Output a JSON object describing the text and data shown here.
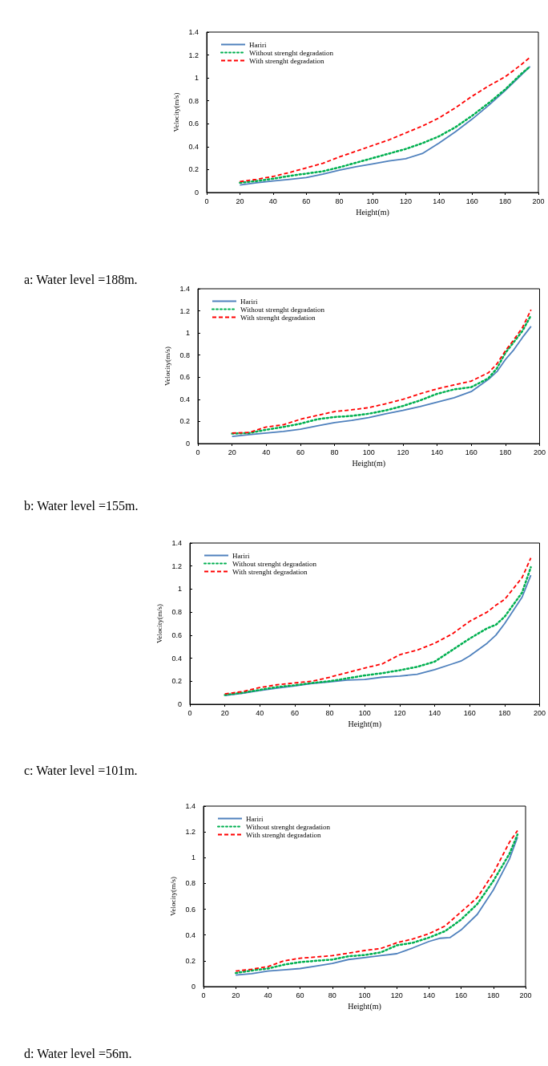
{
  "chart_data": [
    {
      "type": "line",
      "xlabel": "Height(m)",
      "ylabel": "Velocity(m/s)",
      "annotations": [
        "a: Water level =188m."
      ],
      "xlim": [
        0,
        200
      ],
      "xticks": [
        0,
        20,
        40,
        60,
        80,
        100,
        120,
        140,
        160,
        180,
        200
      ],
      "ylim": [
        0,
        1.4
      ],
      "yticks": [
        0,
        0.2,
        0.4,
        0.6,
        0.8,
        1,
        1.2,
        1.4
      ],
      "grid": false,
      "legend": "top left",
      "marker": "none",
      "series": [
        {
          "name": "Hariri",
          "color": "#4f81bd",
          "line_style": "solid",
          "x": [
            20,
            30,
            40,
            50,
            60,
            70,
            80,
            90,
            100,
            110,
            120,
            130,
            140,
            150,
            160,
            170,
            180,
            190,
            195
          ],
          "values": [
            0.065,
            0.085,
            0.1,
            0.115,
            0.13,
            0.16,
            0.195,
            0.225,
            0.25,
            0.275,
            0.295,
            0.34,
            0.43,
            0.53,
            0.64,
            0.76,
            0.89,
            1.03,
            1.1
          ]
        },
        {
          "name": "Without strenght degradation",
          "color": "#00b050",
          "line_style": "dotted",
          "x": [
            20,
            30,
            40,
            50,
            60,
            70,
            80,
            90,
            100,
            110,
            120,
            130,
            140,
            150,
            160,
            170,
            180,
            190,
            195
          ],
          "values": [
            0.085,
            0.1,
            0.12,
            0.145,
            0.165,
            0.185,
            0.22,
            0.26,
            0.3,
            0.34,
            0.38,
            0.43,
            0.49,
            0.57,
            0.67,
            0.78,
            0.9,
            1.04,
            1.1
          ]
        },
        {
          "name": "With strenght degradation",
          "color": "#ff0000",
          "line_style": "dashed",
          "x": [
            20,
            30,
            40,
            50,
            60,
            70,
            80,
            90,
            100,
            110,
            120,
            130,
            140,
            150,
            160,
            170,
            180,
            190,
            195
          ],
          "values": [
            0.095,
            0.115,
            0.14,
            0.175,
            0.215,
            0.255,
            0.31,
            0.36,
            0.41,
            0.46,
            0.52,
            0.58,
            0.65,
            0.74,
            0.84,
            0.93,
            1.01,
            1.12,
            1.18
          ]
        }
      ]
    },
    {
      "type": "line",
      "xlabel": "Height(m)",
      "ylabel": "Velocity(m/s)",
      "annotations": [
        "b: Water level =155m."
      ],
      "xlim": [
        0,
        200
      ],
      "xticks": [
        0,
        20,
        40,
        60,
        80,
        100,
        120,
        140,
        160,
        180,
        200
      ],
      "ylim": [
        0,
        1.4
      ],
      "yticks": [
        0,
        0.2,
        0.4,
        0.6,
        0.8,
        1,
        1.2,
        1.4
      ],
      "grid": false,
      "legend": "top left",
      "marker": "none",
      "series": [
        {
          "name": "Hariri",
          "color": "#4f81bd",
          "line_style": "solid",
          "x": [
            20,
            30,
            40,
            50,
            60,
            70,
            80,
            90,
            100,
            110,
            120,
            130,
            140,
            150,
            160,
            170,
            175,
            180,
            185,
            190,
            195
          ],
          "values": [
            0.065,
            0.08,
            0.095,
            0.11,
            0.13,
            0.16,
            0.19,
            0.21,
            0.235,
            0.27,
            0.3,
            0.335,
            0.375,
            0.415,
            0.47,
            0.58,
            0.65,
            0.76,
            0.85,
            0.96,
            1.06
          ]
        },
        {
          "name": "Without strenght degradation",
          "color": "#00b050",
          "line_style": "dotted",
          "x": [
            20,
            30,
            40,
            50,
            60,
            70,
            80,
            90,
            100,
            110,
            120,
            130,
            140,
            150,
            160,
            170,
            175,
            180,
            185,
            190,
            195
          ],
          "values": [
            0.09,
            0.095,
            0.125,
            0.15,
            0.18,
            0.22,
            0.24,
            0.25,
            0.27,
            0.3,
            0.34,
            0.39,
            0.45,
            0.49,
            0.51,
            0.59,
            0.68,
            0.82,
            0.92,
            1.02,
            1.16
          ]
        },
        {
          "name": "With strenght degradation",
          "color": "#ff0000",
          "line_style": "dashed",
          "x": [
            20,
            30,
            40,
            50,
            60,
            70,
            80,
            90,
            100,
            110,
            120,
            130,
            140,
            150,
            160,
            170,
            175,
            180,
            185,
            190,
            195
          ],
          "values": [
            0.095,
            0.1,
            0.15,
            0.17,
            0.22,
            0.255,
            0.29,
            0.305,
            0.325,
            0.36,
            0.4,
            0.45,
            0.495,
            0.53,
            0.565,
            0.64,
            0.72,
            0.84,
            0.94,
            1.05,
            1.21
          ]
        }
      ]
    },
    {
      "type": "line",
      "xlabel": "Height(m)",
      "ylabel": "Velocity(m/s)",
      "annotations": [
        "c: Water level =101m."
      ],
      "xlim": [
        0,
        200
      ],
      "xticks": [
        0,
        20,
        40,
        60,
        80,
        100,
        120,
        140,
        160,
        180,
        200
      ],
      "ylim": [
        0,
        1.4
      ],
      "yticks": [
        0,
        0.2,
        0.4,
        0.6,
        0.8,
        1,
        1.2,
        1.4
      ],
      "grid": false,
      "legend": "top left",
      "marker": "none",
      "series": [
        {
          "name": "Hariri",
          "color": "#4f81bd",
          "line_style": "solid",
          "x": [
            20,
            30,
            40,
            50,
            60,
            70,
            80,
            90,
            100,
            110,
            120,
            130,
            140,
            150,
            155,
            160,
            170,
            175,
            180,
            190,
            195
          ],
          "values": [
            0.075,
            0.095,
            0.12,
            0.14,
            0.16,
            0.18,
            0.195,
            0.21,
            0.215,
            0.235,
            0.245,
            0.26,
            0.3,
            0.35,
            0.375,
            0.42,
            0.53,
            0.6,
            0.7,
            0.93,
            1.12
          ]
        },
        {
          "name": "Without strenght degradation",
          "color": "#00b050",
          "line_style": "dotted",
          "x": [
            20,
            30,
            40,
            50,
            60,
            70,
            80,
            90,
            100,
            110,
            120,
            130,
            140,
            150,
            160,
            170,
            175,
            180,
            190,
            195
          ],
          "values": [
            0.08,
            0.1,
            0.125,
            0.15,
            0.165,
            0.185,
            0.2,
            0.225,
            0.25,
            0.27,
            0.295,
            0.325,
            0.37,
            0.47,
            0.57,
            0.66,
            0.69,
            0.76,
            0.97,
            1.19
          ]
        },
        {
          "name": "With strenght degradation",
          "color": "#ff0000",
          "line_style": "dashed",
          "x": [
            20,
            30,
            40,
            50,
            60,
            70,
            80,
            90,
            100,
            110,
            120,
            130,
            140,
            150,
            160,
            170,
            175,
            180,
            190,
            195
          ],
          "values": [
            0.09,
            0.11,
            0.145,
            0.17,
            0.185,
            0.2,
            0.235,
            0.275,
            0.315,
            0.35,
            0.43,
            0.47,
            0.53,
            0.61,
            0.72,
            0.8,
            0.86,
            0.91,
            1.1,
            1.27
          ]
        }
      ]
    },
    {
      "type": "line",
      "xlabel": "Height(m)",
      "ylabel": "Velocity(m/s)",
      "annotations": [
        "d: Water level =56m."
      ],
      "xlim": [
        0,
        200
      ],
      "xticks": [
        0,
        20,
        40,
        60,
        80,
        100,
        120,
        140,
        160,
        180,
        200
      ],
      "ylim": [
        0,
        1.4
      ],
      "yticks": [
        0,
        0.2,
        0.4,
        0.6,
        0.8,
        1,
        1.2,
        1.4
      ],
      "grid": false,
      "legend": "top left",
      "marker": "none",
      "series": [
        {
          "name": "Hariri",
          "color": "#4f81bd",
          "line_style": "solid",
          "x": [
            20,
            30,
            40,
            50,
            60,
            70,
            80,
            90,
            100,
            110,
            120,
            130,
            140,
            147,
            153,
            160,
            170,
            180,
            190,
            195
          ],
          "values": [
            0.09,
            0.1,
            0.12,
            0.13,
            0.14,
            0.16,
            0.18,
            0.21,
            0.225,
            0.24,
            0.255,
            0.3,
            0.35,
            0.375,
            0.38,
            0.44,
            0.56,
            0.75,
            0.99,
            1.16
          ]
        },
        {
          "name": "Without strenght degradation",
          "color": "#00b050",
          "line_style": "dotted",
          "x": [
            20,
            30,
            40,
            50,
            60,
            70,
            80,
            90,
            100,
            110,
            120,
            130,
            140,
            150,
            160,
            170,
            180,
            190,
            195
          ],
          "values": [
            0.105,
            0.125,
            0.14,
            0.17,
            0.19,
            0.2,
            0.21,
            0.235,
            0.245,
            0.265,
            0.32,
            0.34,
            0.38,
            0.43,
            0.52,
            0.64,
            0.82,
            1.03,
            1.18
          ]
        },
        {
          "name": "With strenght degradation",
          "color": "#ff0000",
          "line_style": "dashed",
          "x": [
            20,
            30,
            40,
            50,
            60,
            70,
            80,
            90,
            100,
            110,
            120,
            130,
            140,
            150,
            160,
            170,
            180,
            190,
            195
          ],
          "values": [
            0.12,
            0.135,
            0.155,
            0.2,
            0.22,
            0.23,
            0.24,
            0.26,
            0.28,
            0.295,
            0.34,
            0.37,
            0.41,
            0.47,
            0.58,
            0.69,
            0.88,
            1.12,
            1.21
          ]
        }
      ]
    }
  ]
}
